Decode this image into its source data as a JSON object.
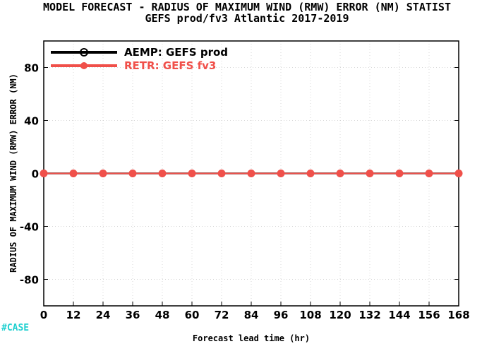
{
  "chart_data": {
    "type": "line",
    "title": "MODEL FORECAST - RADIUS OF MAXIMUM WIND (RMW) ERROR (NM) STATIST",
    "subtitle": "GEFS prod/fv3 Atlantic 2017-2019",
    "xlabel": "Forecast lead time (hr)",
    "ylabel": "RADIUS OF MAXIMUM WIND (RMW) ERROR (NM)",
    "x": [
      0,
      12,
      24,
      36,
      48,
      60,
      72,
      84,
      96,
      108,
      120,
      132,
      144,
      156,
      168
    ],
    "xlim": [
      0,
      168
    ],
    "ylim": [
      -100,
      100
    ],
    "yticks": [
      -80,
      -40,
      0,
      40,
      80
    ],
    "grid": true,
    "legend_position": "top-left",
    "series": [
      {
        "name": "AEMP: GEFS prod",
        "color": "#000000",
        "marker": "open-circle",
        "values": [
          0,
          0,
          0,
          0,
          0,
          0,
          0,
          0,
          0,
          0,
          0,
          0,
          0,
          0,
          0
        ]
      },
      {
        "name": "RETR: GEFS fv3",
        "color": "#f0504a",
        "marker": "filled-circle",
        "values": [
          0,
          0,
          0,
          0,
          0,
          0,
          0,
          0,
          0,
          0,
          0,
          0,
          0,
          0,
          0
        ]
      }
    ]
  },
  "case_label": "#CASE",
  "case_color": "#20d0d0"
}
